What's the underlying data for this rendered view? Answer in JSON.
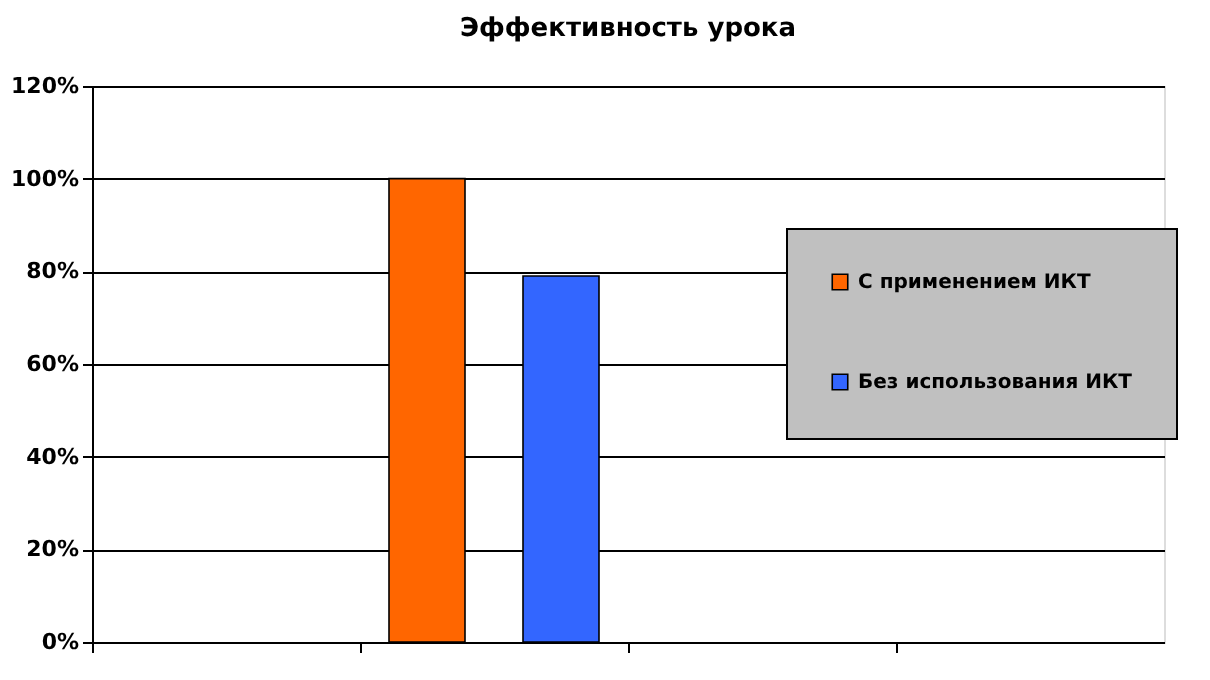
{
  "chart_data": {
    "type": "bar",
    "title": "Эффективность урока",
    "categories": [
      null,
      null,
      null,
      null
    ],
    "series": [
      {
        "name": "С применением ИКТ",
        "color": "#ff6600",
        "values": [
          null,
          100,
          null,
          null
        ]
      },
      {
        "name": "Без использования ИКТ",
        "color": "#3366ff",
        "values": [
          null,
          79,
          null,
          null
        ]
      }
    ],
    "ylim": [
      0,
      120
    ],
    "yticks": [
      {
        "value": 0,
        "label": "0%"
      },
      {
        "value": 20,
        "label": "20%"
      },
      {
        "value": 40,
        "label": "40%"
      },
      {
        "value": 60,
        "label": "60%"
      },
      {
        "value": 80,
        "label": "80%"
      },
      {
        "value": 100,
        "label": "100%"
      },
      {
        "value": 120,
        "label": "120%"
      }
    ],
    "grid": "y",
    "legend": "right",
    "tick_labels": "y"
  }
}
